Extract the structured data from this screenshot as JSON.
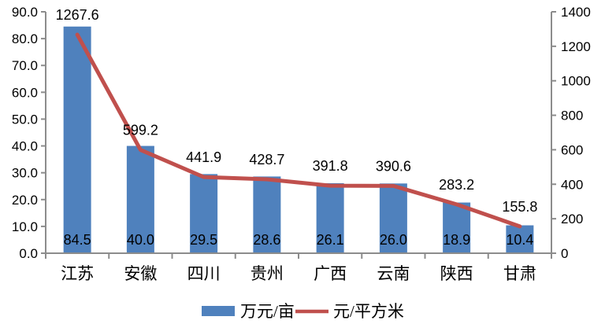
{
  "chart_data": {
    "type": "combo",
    "categories": [
      "江苏",
      "安徽",
      "四川",
      "贵州",
      "广西",
      "云南",
      "陕西",
      "甘肃"
    ],
    "series": [
      {
        "name": "万元/亩",
        "type": "bar",
        "axis": "left",
        "color": "#4F81BD",
        "values": [
          84.5,
          40.0,
          29.5,
          28.6,
          26.1,
          26.0,
          18.9,
          10.4
        ]
      },
      {
        "name": "元/平方米",
        "type": "line",
        "axis": "right",
        "color": "#C0504D",
        "values": [
          1267.6,
          599.2,
          441.9,
          428.7,
          391.8,
          390.6,
          283.2,
          155.8
        ]
      }
    ],
    "left_axis": {
      "min": 0,
      "max": 90,
      "step": 10,
      "ticks": [
        "0.0",
        "10.0",
        "20.0",
        "30.0",
        "40.0",
        "50.0",
        "60.0",
        "70.0",
        "80.0",
        "90.0"
      ]
    },
    "right_axis": {
      "min": 0,
      "max": 1400,
      "step": 200,
      "ticks": [
        "0",
        "200",
        "400",
        "600",
        "800",
        "1000",
        "1200",
        "1400"
      ]
    },
    "grid": false,
    "legend_position": "bottom",
    "background": "#FFFFFF",
    "axis_color": "#8C8C8C",
    "text_color": "#000000",
    "title": "",
    "xlabel": "",
    "ylabel_left": "万元/亩",
    "ylabel_right": "元/平方米"
  }
}
